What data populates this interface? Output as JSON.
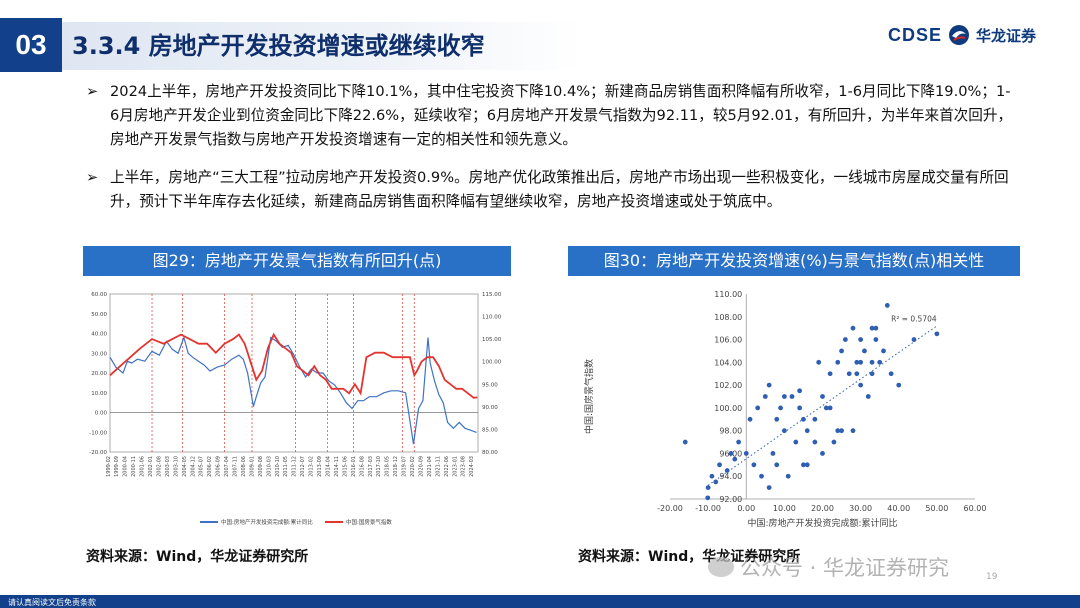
{
  "header": {
    "section_no": "03",
    "title": "3.3.4 房地产开发投资增速或继续收窄",
    "logo_latin": "CDSE",
    "logo_name": "华龙证券"
  },
  "bullets": [
    {
      "mark": "➢",
      "text": "2024上半年，房地产开发投资同比下降10.1%，其中住宅投资下降10.4%；新建商品房销售面积降幅有所收窄，1-6月同比下降19.0%；1-6月房地产开发企业到位资金同比下降22.6%，延续收窄；6月房地产开发景气指数为92.11，较5月92.01，有所回升，为半年来首次回升，房地产开发景气指数与房地产开发投资增速有一定的相关性和领先意义。"
    },
    {
      "mark": "➢",
      "text": "上半年，房地产“三大工程”拉动房地产开发投资0.9%。房地产优化政策推出后，房地产市场出现一些积极变化，一线城市房屋成交量有所回升，预计下半年库存去化延续，新建商品房销售面积降幅有望继续收窄，房地产投资增速或处于筑底中。"
    }
  ],
  "figures": {
    "fig29_title": "图29：房地产开发景气指数有所回升(点)",
    "fig30_title": "图30：房地产开发投资增速(%)与景气指数(点)相关性",
    "source_left": "资料来源：Wind，华龙证券研究所",
    "source_right": "资料来源：Wind，华龙证券研究所"
  },
  "footer": {
    "disclaimer": "请认真阅读文后免责条款",
    "watermark": "公众号 · 华龙证券研究",
    "page": "19"
  },
  "colors": {
    "brand_blue": "#12408a",
    "figure_title_bg": "#2970c7",
    "series_invest": "#3f72c4",
    "series_climate": "#e3342f",
    "scatter_point": "#2f5fb3"
  },
  "chart_data": [
    {
      "type": "line",
      "y_left_ticks": [
        "60.00",
        "50.00",
        "40.00",
        "30.00",
        "20.00",
        "10.00",
        "0.00",
        "-10.00",
        "-20.00"
      ],
      "y_right_ticks": [
        "115.00",
        "110.00",
        "105.00",
        "100.00",
        "95.00",
        "90.00",
        "85.00",
        "80.00"
      ],
      "ylim_left": [
        -20,
        60
      ],
      "ylim_right": [
        80,
        115
      ],
      "x_ticks": [
        "1999-02",
        "1999-09",
        "2000-04",
        "2000-11",
        "2001-06",
        "2002-01",
        "2002-08",
        "2003-03",
        "2003-10",
        "2004-05",
        "2004-12",
        "2005-07",
        "2006-02",
        "2006-09",
        "2007-04",
        "2007-11",
        "2008-06",
        "2009-01",
        "2009-08",
        "2010-03",
        "2010-10",
        "2011-05",
        "2011-12",
        "2012-07",
        "2013-02",
        "2013-09",
        "2014-04",
        "2014-11",
        "2015-06",
        "2016-01",
        "2016-08",
        "2017-03",
        "2017-10",
        "2018-05",
        "2018-12",
        "2019-07",
        "2020-02",
        "2020-09",
        "2021-04",
        "2021-11",
        "2022-06",
        "2023-01",
        "2023-08",
        "2024-03"
      ],
      "series": [
        {
          "name": "中国:房地产开发投资完成额:累计同比",
          "axis": "left",
          "x": [
            1999.1,
            1999.5,
            2000.0,
            2000.3,
            2000.6,
            2001.0,
            2001.5,
            2002.0,
            2002.5,
            2003.0,
            2003.4,
            2003.8,
            2004.2,
            2004.5,
            2004.8,
            2005.2,
            2005.6,
            2006.0,
            2006.5,
            2007.0,
            2007.5,
            2008.0,
            2008.3,
            2008.6,
            2009.0,
            2009.2,
            2009.5,
            2009.8,
            2010.2,
            2010.6,
            2011.0,
            2011.4,
            2011.8,
            2012.2,
            2012.6,
            2013.0,
            2013.4,
            2013.8,
            2014.2,
            2014.6,
            2015.0,
            2015.4,
            2015.8,
            2016.2,
            2016.6,
            2017.0,
            2017.5,
            2018.0,
            2018.5,
            2019.0,
            2019.5,
            2020.05,
            2020.2,
            2020.4,
            2020.7,
            2021.05,
            2021.2,
            2021.5,
            2021.8,
            2022.1,
            2022.4,
            2022.8,
            2023.2,
            2023.6,
            2024.0,
            2024.4
          ],
          "y": [
            28,
            23,
            20,
            26,
            25,
            27,
            26,
            31,
            29,
            36,
            32,
            30,
            38,
            30,
            28,
            26,
            24,
            21,
            23,
            24,
            27,
            29,
            27,
            20,
            3,
            8,
            15,
            18,
            38,
            36,
            33,
            34,
            29,
            23,
            18,
            22,
            20,
            20,
            16,
            14,
            10,
            5,
            2,
            6,
            6,
            8,
            8,
            10,
            11,
            11,
            10,
            -16,
            -8,
            2,
            6,
            38,
            25,
            16,
            9,
            5,
            -5,
            -8,
            -5,
            -8,
            -9,
            -10.1
          ]
        },
        {
          "name": "中国:国房景气指数",
          "axis": "right",
          "x": [
            1999.1,
            1999.8,
            2000.5,
            2001.2,
            2002.0,
            2002.8,
            2003.4,
            2004.0,
            2004.6,
            2005.2,
            2005.8,
            2006.4,
            2007.0,
            2007.6,
            2008.0,
            2008.4,
            2008.8,
            2009.2,
            2009.6,
            2010.0,
            2010.4,
            2010.8,
            2011.2,
            2011.6,
            2012.0,
            2012.4,
            2012.8,
            2013.2,
            2013.6,
            2014.0,
            2014.4,
            2014.8,
            2015.2,
            2015.6,
            2016.0,
            2016.4,
            2016.8,
            2017.4,
            2018.0,
            2018.6,
            2019.2,
            2019.8,
            2020.1,
            2020.3,
            2020.6,
            2021.0,
            2021.4,
            2021.8,
            2022.2,
            2022.6,
            2023.0,
            2023.4,
            2023.8,
            2024.2,
            2024.45
          ],
          "y": [
            97,
            99,
            101,
            103,
            105,
            104,
            105,
            106,
            105,
            104,
            104,
            102,
            104,
            105,
            106,
            104,
            100,
            96,
            98,
            103,
            106,
            104,
            103,
            102,
            99,
            98,
            97,
            99,
            97,
            96,
            94,
            94,
            94,
            93,
            95,
            93,
            101,
            102,
            102,
            101,
            101,
            101,
            97,
            98,
            100,
            101,
            101,
            99,
            96,
            95,
            94,
            94,
            93,
            92,
            92.1
          ]
        }
      ]
    },
    {
      "type": "scatter",
      "xlabel": "中国:房地产开发投资完成额:累计同比",
      "ylabel": "中国:国房景气指数",
      "xlim": [
        -20,
        60
      ],
      "ylim": [
        92,
        110
      ],
      "x_ticks": [
        "-20.00",
        "-10.00",
        "0.00",
        "10.00",
        "20.00",
        "30.00",
        "40.00",
        "50.00",
        "60.00"
      ],
      "y_ticks": [
        "92.00",
        "94.00",
        "96.00",
        "98.00",
        "100.00",
        "102.00",
        "104.00",
        "106.00",
        "108.00",
        "110.00"
      ],
      "annotation": "R² = 0.5704",
      "trendline": {
        "style": "dotted",
        "x": [
          -10,
          50
        ],
        "y": [
          93.2,
          107.2
        ]
      },
      "x": [
        -16,
        -10.1,
        -10,
        -9,
        -8,
        -7,
        -5,
        -4,
        -3,
        -2,
        0,
        1,
        2,
        3,
        4,
        5,
        6,
        6,
        7,
        8,
        8,
        9,
        10,
        10,
        11,
        12,
        13,
        14,
        15,
        15,
        16,
        18,
        19,
        20,
        20,
        21,
        22,
        23,
        24,
        25,
        26,
        27,
        28,
        28,
        29,
        30,
        30,
        31,
        32,
        33,
        33,
        34,
        35,
        36,
        37,
        38,
        40,
        44,
        50,
        14,
        22,
        25,
        29,
        33,
        16,
        18,
        24,
        30,
        34
      ],
      "y": [
        97,
        92.1,
        93,
        94,
        93.5,
        95,
        94.5,
        96,
        95.5,
        97,
        96,
        99,
        95,
        100,
        94,
        101,
        93,
        102,
        96,
        99,
        95,
        100,
        98,
        101,
        94,
        101,
        97,
        101.5,
        99,
        95,
        98,
        99,
        104,
        101,
        96,
        100,
        103,
        97,
        104,
        105,
        106,
        103,
        98,
        107,
        104,
        102,
        106,
        105,
        101,
        107,
        103,
        106,
        104,
        105,
        109,
        103,
        102,
        106,
        106.5,
        100,
        100,
        98,
        103,
        104,
        95,
        97,
        98,
        104,
        107
      ]
    }
  ]
}
